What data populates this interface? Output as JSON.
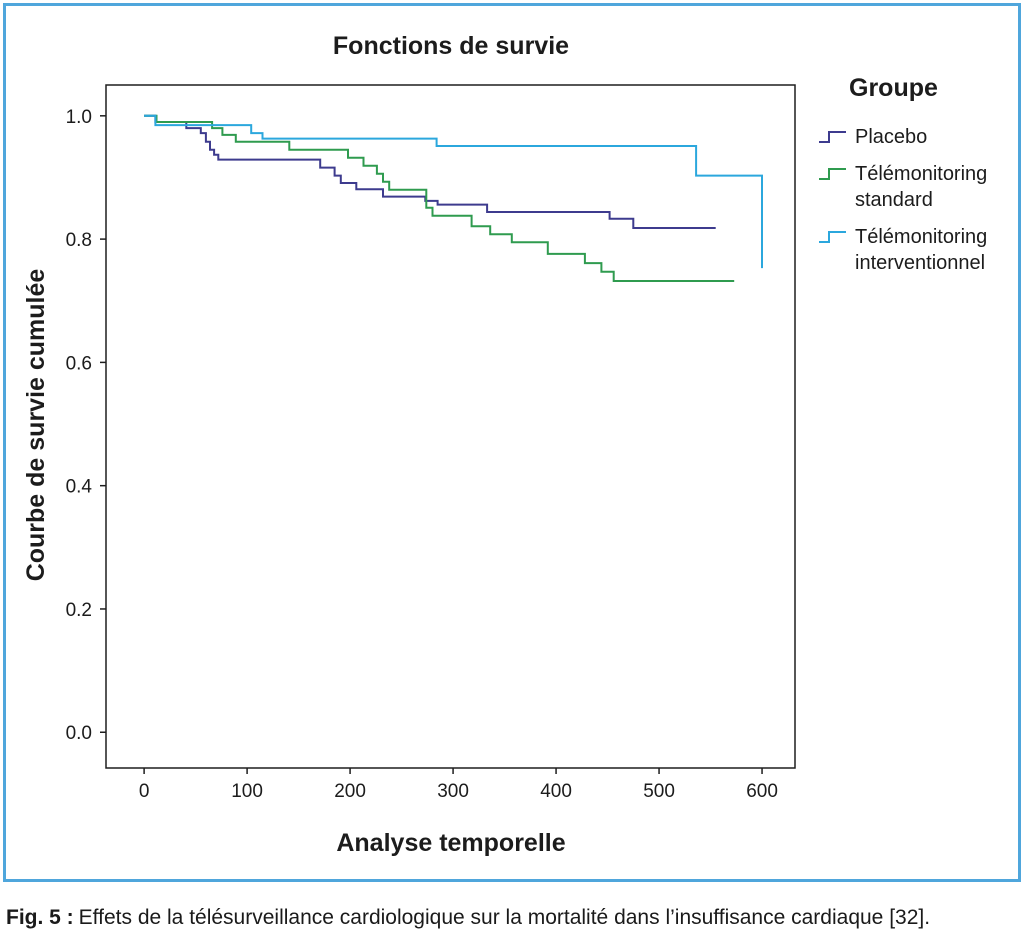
{
  "figure": {
    "frame_color": "#4fa6dc",
    "caption_label": "Fig. 5 :",
    "caption_text": "Effets de la télésurveillance cardiologique sur la mortalité dans l’insuffisance cardiaque [32]."
  },
  "chart_data": {
    "type": "line",
    "step": true,
    "title": "Fonctions de survie",
    "xlabel": "Analyse temporelle",
    "ylabel": "Courbe de survie cumulée",
    "xlim": [
      -37,
      632
    ],
    "ylim": [
      -0.058,
      1.05
    ],
    "xticks": [
      0,
      100,
      200,
      300,
      400,
      500,
      600
    ],
    "yticks": [
      "0.0",
      "0.2",
      "0.4",
      "0.6",
      "0.8",
      "1.0"
    ],
    "grid": false,
    "legend": {
      "title": "Groupe",
      "position": "right"
    },
    "series": [
      {
        "name": "Placebo",
        "color": "#3d3b8e",
        "x": [
          0,
          11,
          41,
          55,
          60,
          64,
          68,
          72,
          171,
          185,
          191,
          206,
          232,
          273,
          285,
          333,
          452,
          475,
          555
        ],
        "y": [
          1.0,
          0.99,
          0.98,
          0.972,
          0.958,
          0.945,
          0.937,
          0.929,
          0.916,
          0.903,
          0.891,
          0.881,
          0.869,
          0.862,
          0.856,
          0.844,
          0.833,
          0.818,
          0.818
        ]
      },
      {
        "name": "Télémonitoring standard",
        "color": "#2f9b4f",
        "x": [
          0,
          12,
          66,
          76,
          89,
          141,
          198,
          213,
          226,
          232,
          238,
          274,
          280,
          318,
          336,
          357,
          392,
          428,
          444,
          456,
          573
        ],
        "y": [
          1.0,
          0.99,
          0.98,
          0.969,
          0.958,
          0.945,
          0.932,
          0.919,
          0.906,
          0.893,
          0.88,
          0.851,
          0.838,
          0.821,
          0.808,
          0.795,
          0.776,
          0.761,
          0.747,
          0.732,
          0.732
        ]
      },
      {
        "name": "Télémonitoring interventionnel",
        "color": "#2ba7dd",
        "x": [
          0,
          11,
          104,
          115,
          284,
          536,
          600
        ],
        "y": [
          1.0,
          0.985,
          0.972,
          0.963,
          0.951,
          0.903,
          0.753
        ]
      }
    ]
  }
}
